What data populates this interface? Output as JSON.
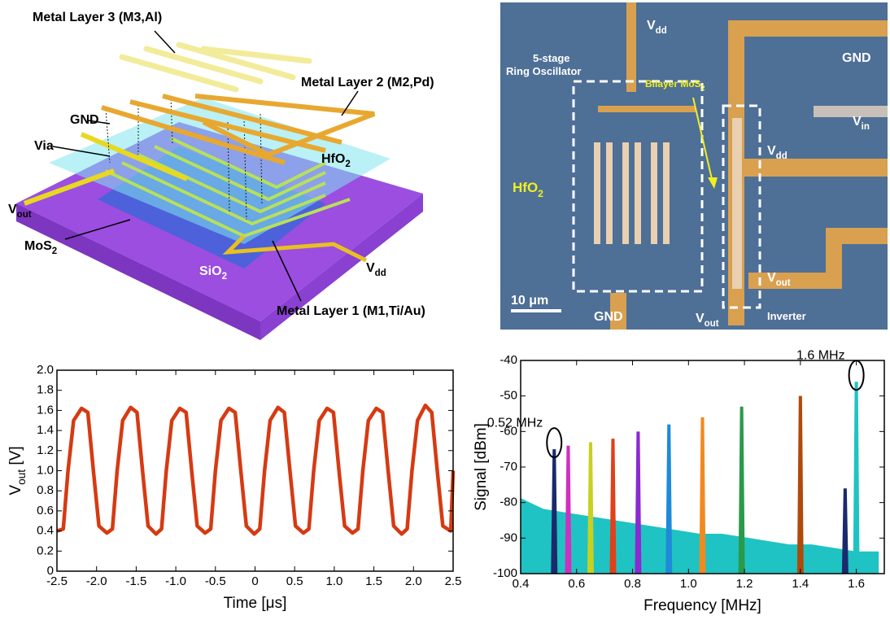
{
  "schematic": {
    "labels": [
      {
        "text": "Metal Layer 3 (M3,Al)"
      },
      {
        "text": "Metal Layer 2 (M2,Pd)"
      },
      {
        "text": "GND"
      },
      {
        "text": "Via"
      },
      {
        "text": "HfO",
        "sub": "2"
      },
      {
        "text": "V",
        "sub": "out"
      },
      {
        "text": "MoS",
        "sub": "2"
      },
      {
        "text": "SiO",
        "sub": "2"
      },
      {
        "text": "V",
        "sub": "dd"
      },
      {
        "text": "Metal Layer 1 (M1,Ti/Au)"
      }
    ]
  },
  "micrograph": {
    "labels": [
      {
        "text": "V",
        "sub": "dd"
      },
      {
        "text": "GND"
      },
      {
        "text": "5-stage"
      },
      {
        "text": "Ring Oscillator"
      },
      {
        "text": "Bilayer MoS",
        "sub": "2"
      },
      {
        "text": "HfO",
        "sub": "2"
      },
      {
        "text": "V",
        "sub": "in"
      },
      {
        "text": "V",
        "sub": "dd"
      },
      {
        "text": "V",
        "sub": "out"
      },
      {
        "text": "10 μm"
      },
      {
        "text": "GND"
      },
      {
        "text": "V",
        "sub": "out"
      },
      {
        "text": "Inverter"
      }
    ]
  },
  "chart_data": [
    {
      "type": "line",
      "xlabel": "Time [μs]",
      "ylabel": {
        "text": "V",
        "sub": "out",
        "after": " [V]"
      },
      "color": "#d63a12",
      "x": [
        -2.5,
        -2.42,
        -2.36,
        -2.29,
        -2.19,
        -2.11,
        -2.04,
        -1.97,
        -1.87,
        -1.8,
        -1.74,
        -1.67,
        -1.57,
        -1.49,
        -1.42,
        -1.35,
        -1.25,
        -1.18,
        -1.12,
        -1.05,
        -0.95,
        -0.87,
        -0.8,
        -0.73,
        -0.63,
        -0.56,
        -0.5,
        -0.43,
        -0.33,
        -0.25,
        -0.18,
        -0.11,
        -0.01,
        0.06,
        0.12,
        0.19,
        0.29,
        0.37,
        0.44,
        0.51,
        0.61,
        0.68,
        0.74,
        0.81,
        0.91,
        0.99,
        1.06,
        1.13,
        1.23,
        1.3,
        1.36,
        1.43,
        1.53,
        1.61,
        1.68,
        1.75,
        1.85,
        1.92,
        1.98,
        2.05,
        2.15,
        2.23,
        2.3,
        2.37,
        2.47,
        2.5
      ],
      "values": [
        0.4,
        0.42,
        1.0,
        1.5,
        1.62,
        1.58,
        1.0,
        0.45,
        0.38,
        0.42,
        1.0,
        1.5,
        1.63,
        1.58,
        1.0,
        0.45,
        0.37,
        0.42,
        1.0,
        1.5,
        1.62,
        1.58,
        1.0,
        0.45,
        0.38,
        0.42,
        1.0,
        1.5,
        1.62,
        1.58,
        1.0,
        0.45,
        0.37,
        0.42,
        1.0,
        1.5,
        1.63,
        1.58,
        1.0,
        0.45,
        0.38,
        0.42,
        1.0,
        1.5,
        1.62,
        1.58,
        1.0,
        0.45,
        0.38,
        0.42,
        1.0,
        1.5,
        1.62,
        1.58,
        1.0,
        0.45,
        0.37,
        0.42,
        1.0,
        1.5,
        1.65,
        1.58,
        1.0,
        0.45,
        0.4,
        1.0
      ],
      "xlim": [
        -2.5,
        2.5
      ],
      "xticks": [
        -2.5,
        {
          "value": -2,
          "label": "-2.0"
        },
        -1.5,
        {
          "value": -1,
          "label": "-1.0"
        },
        -0.5,
        0,
        0.5,
        {
          "value": 1,
          "label": "1.0"
        },
        1.5,
        {
          "value": 2,
          "label": "2.0"
        },
        2.5
      ],
      "ylim": [
        0,
        2
      ],
      "yticks": [
        0,
        0.2,
        0.4,
        0.6,
        0.8,
        {
          "value": 1,
          "label": "1.0"
        },
        1.2,
        1.4,
        1.6,
        1.8,
        {
          "value": 2,
          "label": "2.0"
        }
      ],
      "grid": false
    },
    {
      "type": "spectrum",
      "xlabel": "Frequency [MHz]",
      "ylabel": {
        "text": "Signal [dBm]"
      },
      "series": [
        {
          "color": "#1fc3c3",
          "x": [
            0.4,
            0.48,
            0.56,
            0.64,
            0.72,
            0.8,
            0.88,
            0.96,
            1.04,
            1.12,
            1.2,
            1.28,
            1.36,
            1.44,
            1.52,
            1.6,
            1.68
          ],
          "values": [
            -79,
            -82,
            -83,
            -84,
            -85,
            -86,
            -87,
            -88,
            -89,
            -89,
            -90,
            -91,
            -92,
            -92,
            -93,
            -94,
            -94
          ]
        },
        {
          "color": "#1a2a6c",
          "x": [
            0.52
          ],
          "values": [
            -65
          ]
        },
        {
          "color": "#d030c0",
          "x": [
            0.57
          ],
          "values": [
            -64
          ]
        },
        {
          "color": "#c8d020",
          "x": [
            0.65
          ],
          "values": [
            -63
          ]
        },
        {
          "color": "#e0401a",
          "x": [
            0.73
          ],
          "values": [
            -62
          ]
        },
        {
          "color": "#8a2ad0",
          "x": [
            0.82
          ],
          "values": [
            -60
          ]
        },
        {
          "color": "#1e8ad8",
          "x": [
            0.93
          ],
          "values": [
            -58
          ]
        },
        {
          "color": "#f08a20",
          "x": [
            1.05
          ],
          "values": [
            -56
          ]
        },
        {
          "color": "#2a9a4a",
          "x": [
            1.19
          ],
          "values": [
            -53
          ]
        },
        {
          "color": "#b04a0a",
          "x": [
            1.4
          ],
          "values": [
            -50
          ]
        },
        {
          "color": "#1a2a6c",
          "x": [
            1.56
          ],
          "values": [
            -76
          ]
        },
        {
          "color": "#1fc3c3",
          "x": [
            1.6
          ],
          "values": [
            -46
          ]
        }
      ],
      "annotations": [
        {
          "text": "0.52 MHz",
          "x": 0.52,
          "y": -65
        },
        {
          "text": "1.6 MHz",
          "x": 1.6,
          "y": -46
        }
      ],
      "xlim": [
        0.4,
        1.7
      ],
      "xticks": [
        0.4,
        0.6,
        0.8,
        {
          "value": 1,
          "label": "1.0"
        },
        1.2,
        1.4,
        1.6
      ],
      "ylim": [
        -100,
        -40
      ],
      "yticks": [
        -100,
        -90,
        -80,
        -70,
        -60,
        -50,
        -40
      ],
      "grid": false
    }
  ]
}
